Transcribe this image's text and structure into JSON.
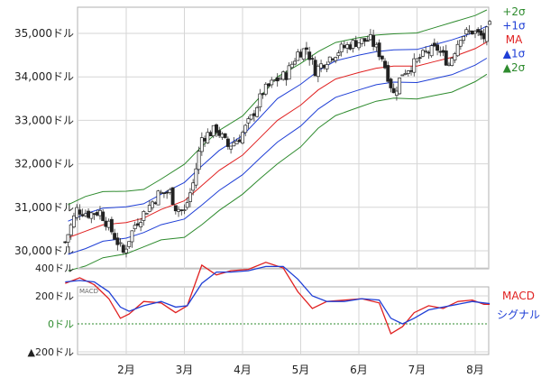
{
  "chart_data": [
    {
      "type": "candlestick",
      "title": "",
      "xlabel": "",
      "ylabel": "",
      "ylim": [
        29700,
        35700
      ],
      "y_ticks": [
        30000,
        31000,
        32000,
        33000,
        34000,
        35000
      ],
      "y_tick_labels": [
        "30,000ドル",
        "31,000ドル",
        "32,000ドル",
        "33,000ドル",
        "34,000ドル",
        "35,000ドル"
      ],
      "x_month_labels": [
        "2月",
        "3月",
        "4月",
        "5月",
        "6月",
        "7月",
        "8月"
      ],
      "grid": true,
      "legend_position": "right",
      "legend": [
        {
          "label": "+2σ",
          "color": "#2e8b2e"
        },
        {
          "label": "+1σ",
          "color": "#1f3fd6"
        },
        {
          "label": "MA",
          "color": "#e02020"
        },
        {
          "label": "▲1σ",
          "color": "#1f3fd6"
        },
        {
          "label": "▲2σ",
          "color": "#2e8b2e"
        }
      ],
      "ma_series": [
        {
          "month": 1.0,
          "ma": 30300,
          "sigma": 380
        },
        {
          "month": 1.3,
          "ma": 30450,
          "sigma": 400
        },
        {
          "month": 1.6,
          "ma": 30600,
          "sigma": 380
        },
        {
          "month": 2.0,
          "ma": 30650,
          "sigma": 360
        },
        {
          "month": 2.3,
          "ma": 30750,
          "sigma": 330
        },
        {
          "month": 2.6,
          "ma": 30950,
          "sigma": 350
        },
        {
          "month": 3.0,
          "ma": 31150,
          "sigma": 420
        },
        {
          "month": 3.3,
          "ma": 31500,
          "sigma": 450
        },
        {
          "month": 3.6,
          "ma": 31850,
          "sigma": 460
        },
        {
          "month": 4.0,
          "ma": 32200,
          "sigma": 450
        },
        {
          "month": 4.3,
          "ma": 32600,
          "sigma": 470
        },
        {
          "month": 4.6,
          "ma": 33000,
          "sigma": 500
        },
        {
          "month": 5.0,
          "ma": 33350,
          "sigma": 480
        },
        {
          "month": 5.3,
          "ma": 33700,
          "sigma": 440
        },
        {
          "month": 5.6,
          "ma": 33950,
          "sigma": 420
        },
        {
          "month": 6.0,
          "ma": 34100,
          "sigma": 400
        },
        {
          "month": 6.3,
          "ma": 34200,
          "sigma": 380
        },
        {
          "month": 6.6,
          "ma": 34250,
          "sigma": 370
        },
        {
          "month": 7.0,
          "ma": 34250,
          "sigma": 380
        },
        {
          "month": 7.3,
          "ma": 34350,
          "sigma": 390
        },
        {
          "month": 7.6,
          "ma": 34450,
          "sigma": 400
        },
        {
          "month": 8.0,
          "ma": 34650,
          "sigma": 380
        },
        {
          "month": 8.2,
          "ma": 34800,
          "sigma": 370
        }
      ],
      "price_path": [
        {
          "month": 0.95,
          "close": 30200
        },
        {
          "month": 1.15,
          "close": 30950
        },
        {
          "month": 1.35,
          "close": 30850
        },
        {
          "month": 1.55,
          "close": 30900
        },
        {
          "month": 1.75,
          "close": 30450
        },
        {
          "month": 1.95,
          "close": 29950
        },
        {
          "month": 2.15,
          "close": 30600
        },
        {
          "month": 2.35,
          "close": 30950
        },
        {
          "month": 2.55,
          "close": 31300
        },
        {
          "month": 2.75,
          "close": 31350
        },
        {
          "month": 2.85,
          "close": 31000
        },
        {
          "month": 3.0,
          "close": 30900
        },
        {
          "month": 3.15,
          "close": 31550
        },
        {
          "month": 3.3,
          "close": 32600
        },
        {
          "month": 3.55,
          "close": 32800
        },
        {
          "month": 3.75,
          "close": 32400
        },
        {
          "month": 3.95,
          "close": 32600
        },
        {
          "month": 4.15,
          "close": 33050
        },
        {
          "month": 4.35,
          "close": 33650
        },
        {
          "month": 4.55,
          "close": 33900
        },
        {
          "month": 4.75,
          "close": 34050
        },
        {
          "month": 4.95,
          "close": 34550
        },
        {
          "month": 5.1,
          "close": 34650
        },
        {
          "month": 5.25,
          "close": 34150
        },
        {
          "month": 5.45,
          "close": 34400
        },
        {
          "month": 5.7,
          "close": 34650
        },
        {
          "month": 5.95,
          "close": 34800
        },
        {
          "month": 6.2,
          "close": 34850
        },
        {
          "month": 6.4,
          "close": 34450
        },
        {
          "month": 6.6,
          "close": 33600
        },
        {
          "month": 6.75,
          "close": 34100
        },
        {
          "month": 6.95,
          "close": 34300
        },
        {
          "month": 7.15,
          "close": 34550
        },
        {
          "month": 7.35,
          "close": 34650
        },
        {
          "month": 7.55,
          "close": 34300
        },
        {
          "month": 7.75,
          "close": 34950
        },
        {
          "month": 7.95,
          "close": 35050
        },
        {
          "month": 8.15,
          "close": 34900
        },
        {
          "month": 8.25,
          "close": 35150
        }
      ]
    },
    {
      "type": "line",
      "title": "MACD",
      "xlabel": "",
      "ylabel": "",
      "ylim": [
        -300,
        500
      ],
      "y_ticks": [
        400,
        200,
        0,
        -200
      ],
      "y_tick_labels": [
        "400ドル",
        "200ドル",
        "0ドル",
        "▲200ドル"
      ],
      "zero_label_color": "#2e8b2e",
      "grid": true,
      "legend_position": "right",
      "series": [
        {
          "name": "MACD",
          "color": "#e02020",
          "x": [
            0.95,
            1.2,
            1.45,
            1.7,
            1.9,
            2.05,
            2.3,
            2.6,
            2.85,
            3.05,
            3.3,
            3.55,
            3.8,
            4.1,
            4.4,
            4.7,
            4.95,
            5.2,
            5.45,
            5.75,
            6.05,
            6.35,
            6.55,
            6.75,
            6.95,
            7.2,
            7.45,
            7.7,
            7.95,
            8.15,
            8.25
          ],
          "y": [
            290,
            330,
            280,
            180,
            40,
            70,
            160,
            150,
            80,
            130,
            420,
            350,
            380,
            390,
            440,
            400,
            230,
            110,
            160,
            170,
            180,
            150,
            -70,
            -20,
            80,
            130,
            110,
            160,
            170,
            140,
            140
          ]
        },
        {
          "name": "シグナル",
          "color": "#1f3fd6",
          "x": [
            0.95,
            1.2,
            1.45,
            1.7,
            1.9,
            2.05,
            2.3,
            2.6,
            2.85,
            3.05,
            3.3,
            3.55,
            3.8,
            4.1,
            4.4,
            4.7,
            4.95,
            5.2,
            5.45,
            5.75,
            6.05,
            6.35,
            6.55,
            6.75,
            6.95,
            7.2,
            7.45,
            7.7,
            7.95,
            8.15,
            8.25
          ],
          "y": [
            300,
            310,
            300,
            230,
            120,
            90,
            130,
            160,
            120,
            130,
            290,
            370,
            370,
            380,
            410,
            410,
            320,
            200,
            160,
            160,
            180,
            170,
            40,
            0,
            40,
            100,
            120,
            140,
            160,
            150,
            145
          ]
        }
      ],
      "corner_label": "MACD"
    }
  ]
}
